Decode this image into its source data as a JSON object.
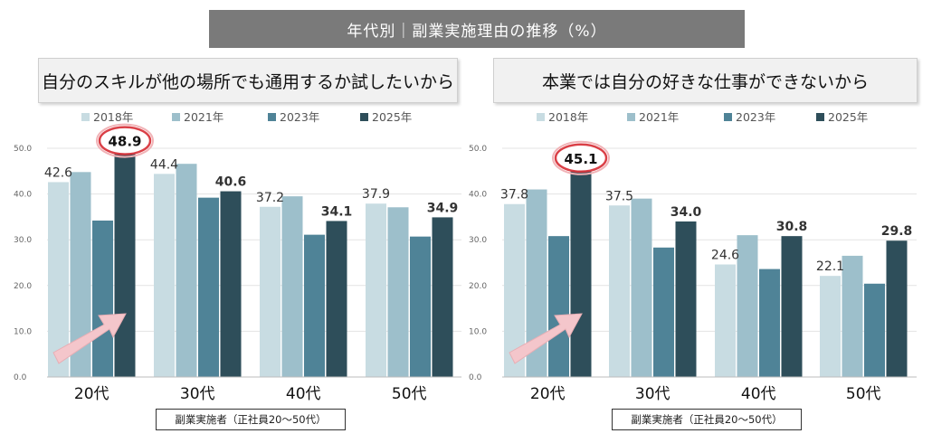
{
  "banner": {
    "title": "年代別｜副業実施理由の推移（%）"
  },
  "colors": {
    "2018": "#c8dce2",
    "2021": "#9dbfcb",
    "2023": "#4f8397",
    "2025": "#2e4e5a",
    "arrow": "#f4c6cb",
    "highlight": "#d9363e"
  },
  "chart_data": [
    {
      "type": "bar",
      "title": "自分のスキルが他の場所でも通用するか試したいから",
      "categories": [
        "20代",
        "30代",
        "40代",
        "50代"
      ],
      "series": [
        {
          "name": "2018年",
          "values": [
            42.6,
            44.4,
            37.2,
            37.9
          ]
        },
        {
          "name": "2021年",
          "values": [
            44.8,
            46.6,
            39.5,
            37.1
          ]
        },
        {
          "name": "2023年",
          "values": [
            34.2,
            39.2,
            31.1,
            30.7
          ]
        },
        {
          "name": "2025年",
          "values": [
            48.9,
            40.6,
            34.1,
            34.9
          ]
        }
      ],
      "labeled_series": [
        "2018年",
        "2025年"
      ],
      "highlight": {
        "category": "20代",
        "series": "2025年"
      },
      "yticks": [
        "0.0",
        "10.0",
        "20.0",
        "30.0",
        "40.0",
        "50.0"
      ],
      "ylim": [
        0,
        50
      ],
      "grid": true,
      "legend": "top",
      "note": "副業実施者（正社員20〜50代）"
    },
    {
      "type": "bar",
      "title": "本業では自分の好きな仕事ができないから",
      "categories": [
        "20代",
        "30代",
        "40代",
        "50代"
      ],
      "series": [
        {
          "name": "2018年",
          "values": [
            37.8,
            37.5,
            24.6,
            22.1
          ]
        },
        {
          "name": "2021年",
          "values": [
            41.0,
            39.0,
            31.0,
            26.5
          ]
        },
        {
          "name": "2023年",
          "values": [
            30.8,
            28.3,
            23.6,
            20.4
          ]
        },
        {
          "name": "2025年",
          "values": [
            45.1,
            34.0,
            30.8,
            29.8
          ]
        }
      ],
      "labeled_series": [
        "2018年",
        "2025年"
      ],
      "highlight": {
        "category": "20代",
        "series": "2025年"
      },
      "yticks": [
        "0.0",
        "10.0",
        "20.0",
        "30.0",
        "40.0",
        "50.0"
      ],
      "ylim": [
        0,
        50
      ],
      "grid": true,
      "legend": "top",
      "note": "副業実施者（正社員20〜50代）"
    }
  ]
}
